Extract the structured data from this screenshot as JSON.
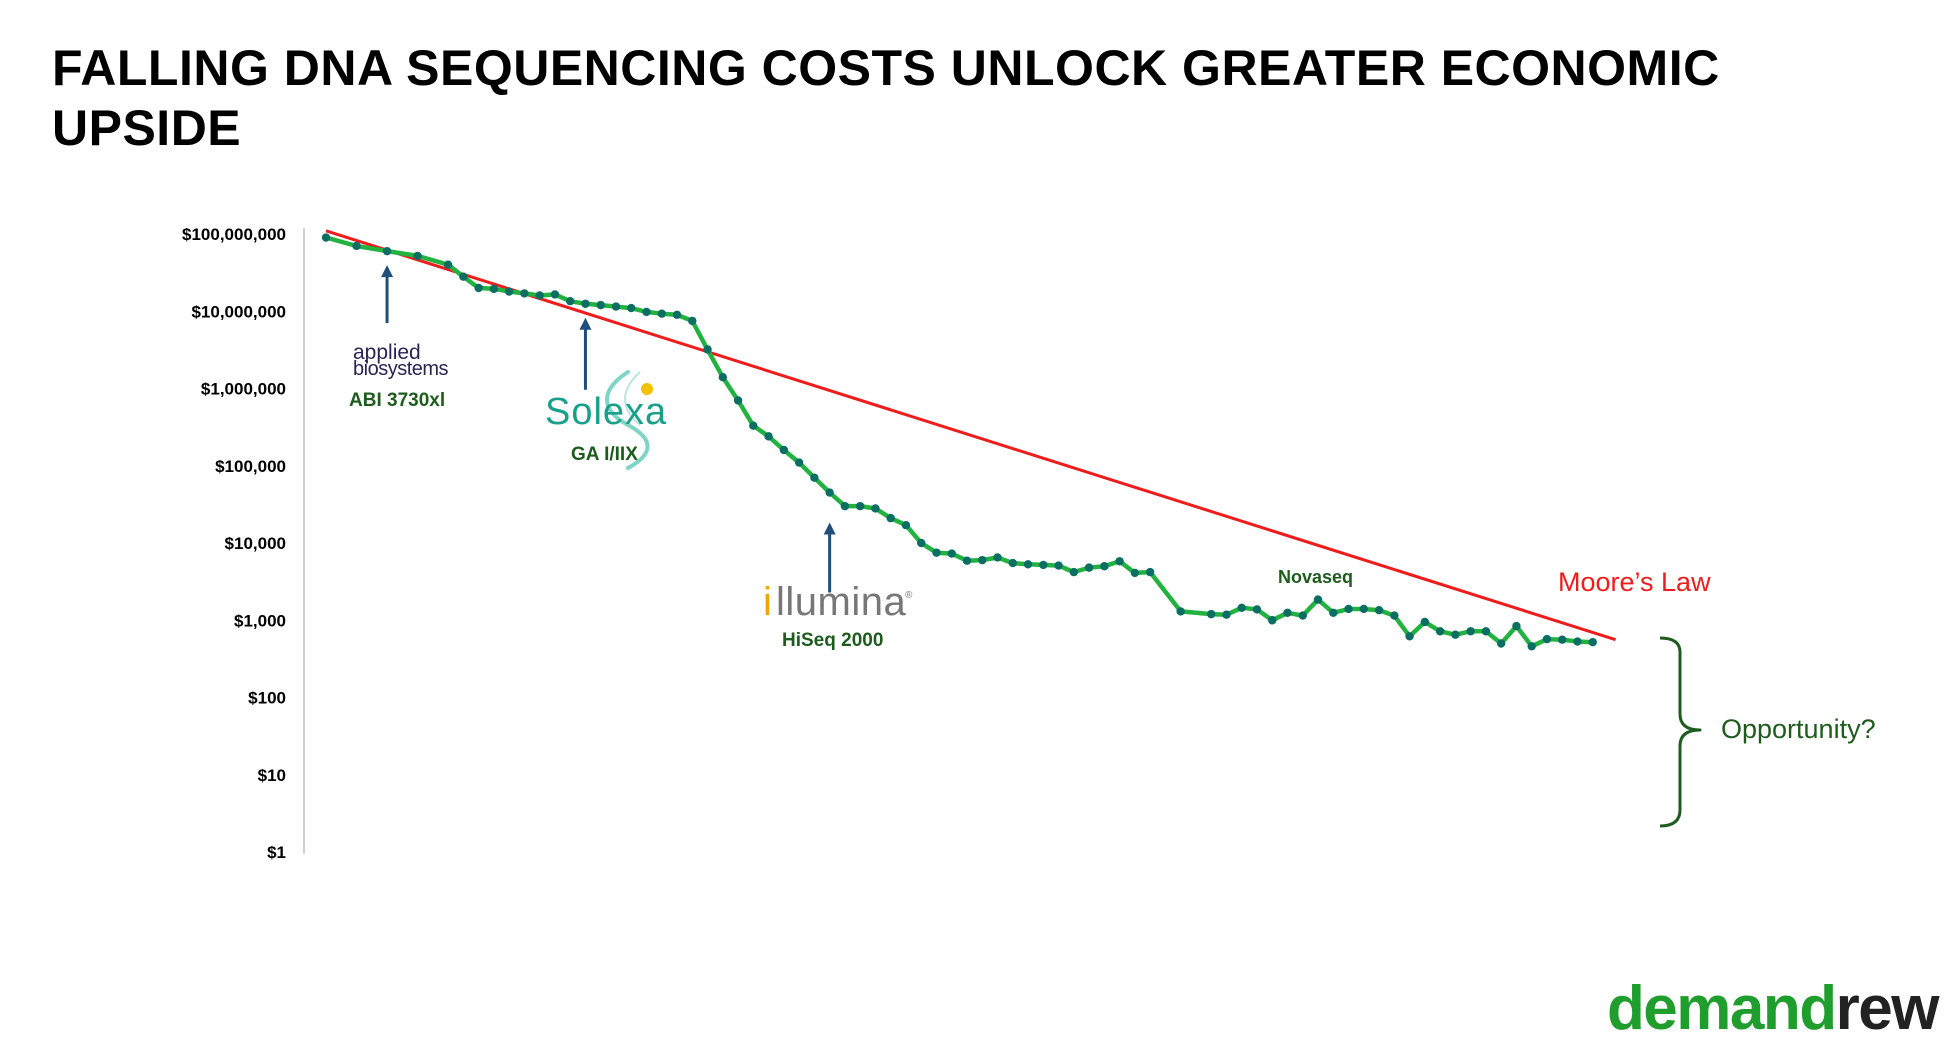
{
  "page": {
    "title": "FALLING DNA SEQUENCING COSTS UNLOCK GREATER ECONOMIC UPSIDE",
    "logo": {
      "part1": "demand",
      "part2": "rew",
      "color1": "#1f9e2e",
      "color2": "#222222"
    }
  },
  "colors": {
    "cost_line": "#22b240",
    "cost_marker": "#0b6e63",
    "moores_law": "#ee1c1c",
    "arrow": "#1f4e79",
    "annotation": "#1e5c1e",
    "bracket": "#1e5c1e"
  },
  "chart_data": {
    "type": "line",
    "title": "",
    "xlabel": "",
    "ylabel": "",
    "y_scale": "log",
    "ylim": [
      1,
      100000000
    ],
    "y_ticks": [
      {
        "value": 1,
        "label": "$1"
      },
      {
        "value": 10,
        "label": "$10"
      },
      {
        "value": 100,
        "label": "$100"
      },
      {
        "value": 1000,
        "label": "$1,000"
      },
      {
        "value": 10000,
        "label": "$10,000"
      },
      {
        "value": 100000,
        "label": "$100,000"
      },
      {
        "value": 1000000,
        "label": "$1,000,000"
      },
      {
        "value": 10000000,
        "label": "$10,000,000"
      },
      {
        "value": 100000000,
        "label": "$100,000,000"
      }
    ],
    "x_axis_labels_shown": false,
    "grid": false,
    "xlim": [
      0,
      84
    ],
    "series": [
      {
        "name": "",
        "style": "line-with-markers",
        "x": [
          0,
          2,
          4,
          6,
          8,
          9,
          10,
          11,
          12,
          13,
          14,
          15,
          16,
          17,
          18,
          19,
          20,
          21,
          22,
          23,
          24,
          25,
          26,
          27,
          28,
          29,
          30,
          31,
          32,
          33,
          34,
          35,
          36,
          37,
          38,
          39,
          40,
          41,
          42,
          43,
          44,
          45,
          46,
          47,
          48,
          49,
          50,
          51,
          52,
          53,
          54,
          56,
          58,
          59,
          60,
          61,
          62,
          63,
          64,
          65,
          66,
          67,
          68,
          69,
          70,
          71,
          72,
          73,
          74,
          75,
          76,
          77,
          78,
          79,
          80,
          81,
          82,
          83
        ],
        "values": [
          90000000,
          70000000,
          60000000,
          52000000,
          40000000,
          28000000,
          20000000,
          19500000,
          18000000,
          17000000,
          16000000,
          16500000,
          13500000,
          12500000,
          12000000,
          11500000,
          11000000,
          9800000,
          9300000,
          9000000,
          7500000,
          3200000,
          1400000,
          700000,
          330000,
          240000,
          160000,
          110000,
          70000,
          45000,
          30000,
          30000,
          28000,
          21000,
          17000,
          10000,
          7500,
          7300,
          5900,
          6000,
          6500,
          5500,
          5300,
          5200,
          5100,
          4200,
          4800,
          5000,
          5800,
          4100,
          4200,
          1300,
          1200,
          1180,
          1450,
          1380,
          1000,
          1250,
          1150,
          1850,
          1250,
          1400,
          1400,
          1350,
          1150,
          620,
          950,
          720,
          650,
          720,
          720,
          500,
          840,
          460,
          570,
          560,
          530,
          520
        ]
      },
      {
        "name": "Moore’s Law",
        "style": "line",
        "x": [
          0,
          84.5
        ],
        "values": [
          110000000,
          560
        ]
      }
    ],
    "annotations": [
      {
        "text": "ABI 3730xl",
        "logo_text": "applied biosystems",
        "x": 4,
        "y": 60000000
      },
      {
        "text": "GA I/IIX",
        "logo_text": "Solexa",
        "x": 17,
        "y": 12500000
      },
      {
        "text": "HiSeq 2000",
        "logo_text": "illumina",
        "x": 33,
        "y": 28000
      },
      {
        "text": "Novaseq"
      },
      {
        "text": "Moore’s Law"
      },
      {
        "text": "Opportunity?",
        "y_range": [
          1,
          600
        ]
      }
    ]
  }
}
